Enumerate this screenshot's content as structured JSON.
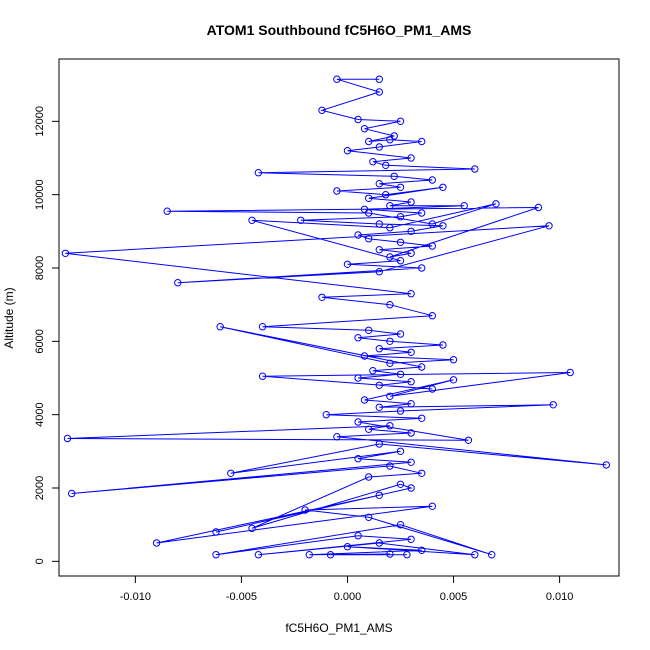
{
  "chart_data": {
    "type": "line",
    "title": "ATOM1 Southbound fC5H6O_PM1_AMS",
    "xlabel": "fC5H6O_PM1_AMS",
    "ylabel": "Altitude (m)",
    "xlim": [
      -0.0136,
      0.0128
    ],
    "ylim": [
      -400,
      13700
    ],
    "x_ticks": [
      -0.01,
      -0.005,
      0.0,
      0.005,
      0.01
    ],
    "x_tick_labels": [
      "-0.010",
      "-0.005",
      "0.000",
      "0.005",
      "0.010"
    ],
    "y_ticks": [
      0,
      2000,
      4000,
      6000,
      8000,
      10000,
      12000
    ],
    "y_tick_labels": [
      "0",
      "2000",
      "4000",
      "6000",
      "8000",
      "10000",
      "12000"
    ],
    "grid": false,
    "legend": "none",
    "marker": "open-circle",
    "series_color": "#0000ff",
    "series": [
      {
        "x": [
          0.0015,
          -0.0005,
          0.0015,
          -0.0012,
          0.0005,
          0.0025,
          0.0008,
          0.0022,
          0.001,
          0.002,
          0.0035,
          0.0015,
          0.0,
          0.003,
          0.0012,
          0.0018,
          0.006,
          -0.0042,
          0.0022,
          0.004,
          0.0015,
          0.0025,
          -0.0005,
          0.0018,
          0.0045,
          0.001,
          0.003,
          0.002,
          0.0055,
          0.0008,
          0.0035,
          0.0025,
          -0.0022,
          0.0015,
          0.0045,
          0.003,
          0.0005,
          0.001,
          0.0025,
          0.004,
          0.0015,
          0.003,
          0.002,
          0.009,
          -0.0085,
          0.001,
          0.004,
          0.007,
          0.002,
          -0.0045,
          0.0025,
          0.0,
          0.0035,
          -0.008,
          0.0015,
          0.0095,
          -0.0133,
          0.003,
          -0.0012,
          0.002,
          0.004,
          -0.004,
          0.001,
          0.0025,
          0.0005,
          0.002,
          0.0045,
          0.0015,
          0.003,
          0.0008,
          0.005,
          0.002,
          -0.006,
          0.0035,
          0.0012,
          0.0025,
          0.0005,
          0.003,
          0.0015,
          0.004,
          -0.004,
          0.0105,
          0.002,
          0.005,
          0.0008,
          0.003,
          0.0015,
          0.0097,
          0.0025,
          -0.001,
          0.0035,
          0.0005,
          0.0057,
          -0.0132,
          0.002,
          0.001,
          0.003,
          -0.0005,
          0.0122,
          0.0015,
          -0.0055,
          0.0025,
          0.0005,
          0.003,
          -0.013,
          0.002,
          0.0035,
          0.001,
          -0.0045,
          0.0025,
          0.003,
          -0.0062,
          0.0015,
          -0.009,
          0.004,
          -0.002,
          0.001,
          0.0068,
          0.0025,
          -0.0062,
          0.0005,
          0.003,
          -0.0042,
          0.0015,
          0.006,
          0.0,
          0.0035,
          -0.0018,
          0.002,
          -0.0008,
          0.0028
        ],
        "y": [
          13150,
          13150,
          12800,
          12300,
          12050,
          12000,
          11800,
          11600,
          11450,
          11500,
          11450,
          11300,
          11200,
          11000,
          10900,
          10800,
          10700,
          10600,
          10500,
          10400,
          10300,
          10200,
          10100,
          10000,
          10200,
          9900,
          9800,
          9700,
          9700,
          9600,
          9500,
          9400,
          9300,
          9200,
          9150,
          9000,
          8900,
          8800,
          8700,
          8600,
          8500,
          8400,
          8300,
          9650,
          9550,
          9500,
          9200,
          9750,
          9100,
          9300,
          8200,
          8100,
          8000,
          7600,
          7900,
          9150,
          8400,
          7300,
          7200,
          7000,
          6700,
          6400,
          6300,
          6200,
          6100,
          6000,
          5900,
          5800,
          5700,
          5600,
          5500,
          5400,
          6400,
          5300,
          5200,
          5100,
          5000,
          4900,
          4800,
          4700,
          5050,
          5150,
          4500,
          4950,
          4400,
          4300,
          4200,
          4270,
          4100,
          4000,
          3900,
          3800,
          3300,
          3350,
          3700,
          3600,
          3500,
          3400,
          2630,
          3200,
          2400,
          3000,
          2800,
          2700,
          1850,
          2600,
          2400,
          2300,
          900,
          2100,
          2000,
          800,
          1800,
          500,
          1500,
          1400,
          1200,
          180,
          1000,
          180,
          700,
          600,
          180,
          500,
          180,
          400,
          300,
          180,
          200,
          180,
          180
        ]
      }
    ]
  }
}
